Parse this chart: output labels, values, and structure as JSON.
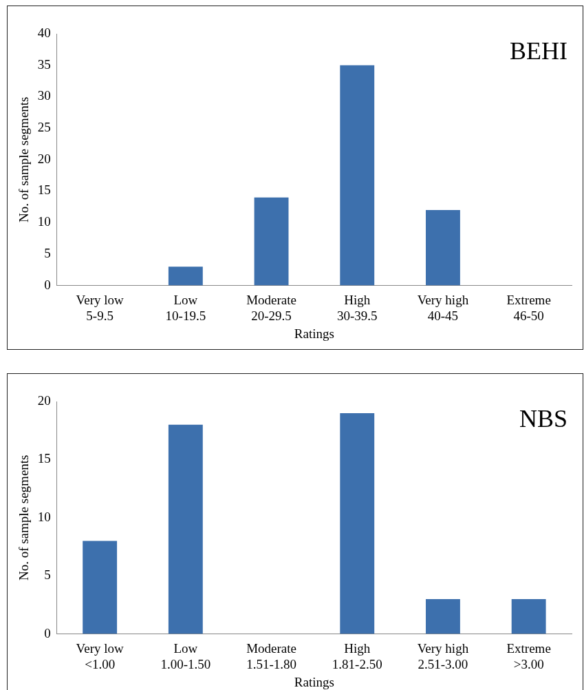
{
  "chart_data": [
    {
      "type": "bar",
      "title": "BEHI",
      "xlabel": "Ratings",
      "ylabel": "No. of sample segments",
      "categories": [
        "Very low\n5-9.5",
        "Low\n10-19.5",
        "Moderate\n20-29.5",
        "High\n30-39.5",
        "Very high\n40-45",
        "Extreme\n46-50"
      ],
      "values": [
        0,
        3,
        14,
        35,
        12,
        0
      ],
      "color": "#3d70ad",
      "ylim": [
        0,
        40
      ],
      "yticks": [
        0,
        5,
        10,
        15,
        20,
        25,
        30,
        35,
        40
      ]
    },
    {
      "type": "bar",
      "title": "NBS",
      "xlabel": "Ratings",
      "ylabel": "No. of sample segments",
      "categories": [
        "Very low\n<1.00",
        "Low\n1.00-1.50",
        "Moderate\n1.51-1.80",
        "High\n1.81-2.50",
        "Very high\n2.51-3.00",
        "Extreme\n>3.00"
      ],
      "values": [
        8,
        18,
        0,
        19,
        3,
        3
      ],
      "color": "#3d70ad",
      "ylim": [
        0,
        20
      ],
      "yticks": [
        0,
        5,
        10,
        15,
        20
      ]
    }
  ]
}
